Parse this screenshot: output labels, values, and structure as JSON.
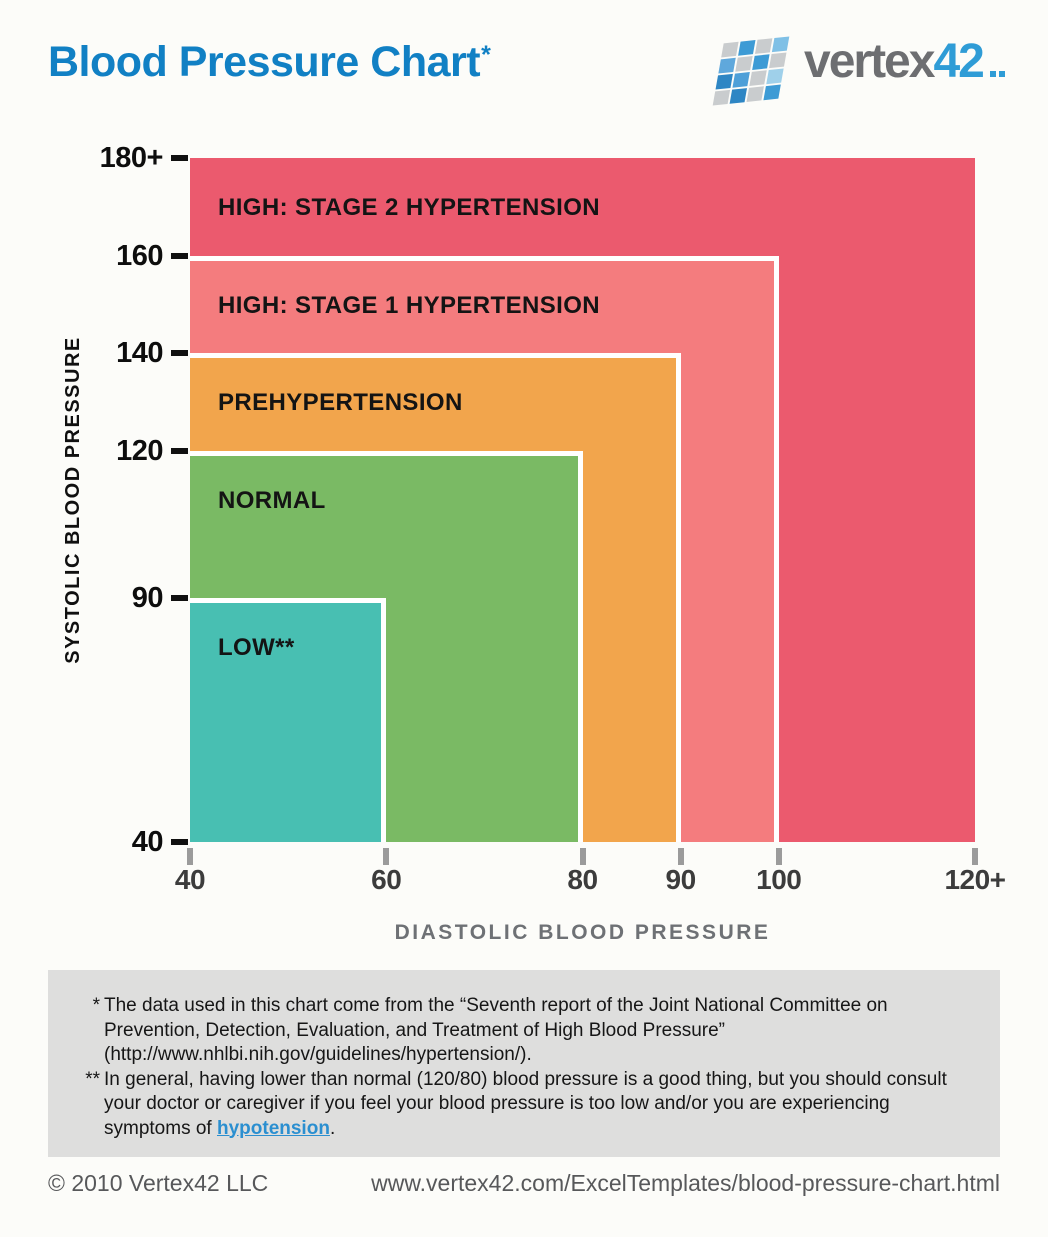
{
  "page": {
    "title": "Blood Pressure Chart",
    "title_superscript": "*"
  },
  "logo": {
    "word_gray": "vertex",
    "word_blue": "42",
    "mosaic_rows": [
      [
        "#C9CCCE",
        "#3D9BD5",
        "#C9CCCE",
        "#7FC0E6"
      ],
      [
        "#5FA8DC",
        "#C9CCCE",
        "#3D9BD5",
        "#C9CCCE"
      ],
      [
        "#2E86C4",
        "#4D9FD8",
        "#C9CCCE",
        "#9FD0EA"
      ],
      [
        "#C9CCCE",
        "#2E86C4",
        "#C9CCCE",
        "#3D9BD5"
      ]
    ]
  },
  "chart_data": {
    "type": "area",
    "title": "Blood Pressure Chart",
    "xlabel": "DIASTOLIC BLOOD PRESSURE",
    "ylabel": "SYSTOLIC BLOOD PRESSURE",
    "xlim": [
      40,
      120
    ],
    "ylim": [
      40,
      180
    ],
    "grid": false,
    "legend": "none",
    "x_ticks": [
      {
        "value": 40,
        "label": "40"
      },
      {
        "value": 60,
        "label": "60"
      },
      {
        "value": 80,
        "label": "80"
      },
      {
        "value": 90,
        "label": "90"
      },
      {
        "value": 100,
        "label": "100"
      },
      {
        "value": 120,
        "label": "120+"
      }
    ],
    "y_ticks": [
      {
        "value": 40,
        "label": "40"
      },
      {
        "value": 90,
        "label": "90"
      },
      {
        "value": 120,
        "label": "120"
      },
      {
        "value": 140,
        "label": "140"
      },
      {
        "value": 160,
        "label": "160"
      },
      {
        "value": 180,
        "label": "180+"
      }
    ],
    "regions": [
      {
        "label": "HIGH: STAGE 2 HYPERTENSION",
        "diastolic_max": 120,
        "diastolic_max_label": "120+",
        "systolic_max": 180,
        "systolic_max_label": "180+",
        "color": "#EB5A6E",
        "textured": false
      },
      {
        "label": "HIGH: STAGE 1 HYPERTENSION",
        "diastolic_max": 100,
        "diastolic_max_label": "100",
        "systolic_max": 160,
        "systolic_max_label": "160",
        "color": "#F47C7E",
        "textured": false
      },
      {
        "label": "PREHYPERTENSION",
        "diastolic_max": 90,
        "diastolic_max_label": "90",
        "systolic_max": 140,
        "systolic_max_label": "140",
        "color": "#F2A54C",
        "textured": false
      },
      {
        "label": "NORMAL",
        "diastolic_max": 80,
        "diastolic_max_label": "80",
        "systolic_max": 120,
        "systolic_max_label": "120",
        "color": "#7ABA64",
        "textured": false
      },
      {
        "label": "LOW**",
        "diastolic_max": 60,
        "diastolic_max_label": "60",
        "systolic_max": 90,
        "systolic_max_label": "90",
        "color": "#48BFB2",
        "textured": true
      }
    ]
  },
  "footnotes": {
    "items": [
      {
        "marker": "*",
        "text": "The data used in this chart come from the “Seventh report of the Joint National Committee on Prevention, Detection, Evaluation, and Treatment of High Blood Pressure” (http://www.nhlbi.nih.gov/guidelines/hypertension/)."
      },
      {
        "marker": "**",
        "text_before_link": "In general, having lower than normal (120/80) blood pressure is a good thing, but you should consult your doctor or caregiver if you feel your blood pressure is too low and/or you are experiencing symptoms of ",
        "link_text": "hypotension",
        "text_after_link": "."
      }
    ]
  },
  "footer": {
    "copyright": "© 2010 Vertex42 LLC",
    "url": "www.vertex42.com/ExcelTemplates/blood-pressure-chart.html"
  }
}
